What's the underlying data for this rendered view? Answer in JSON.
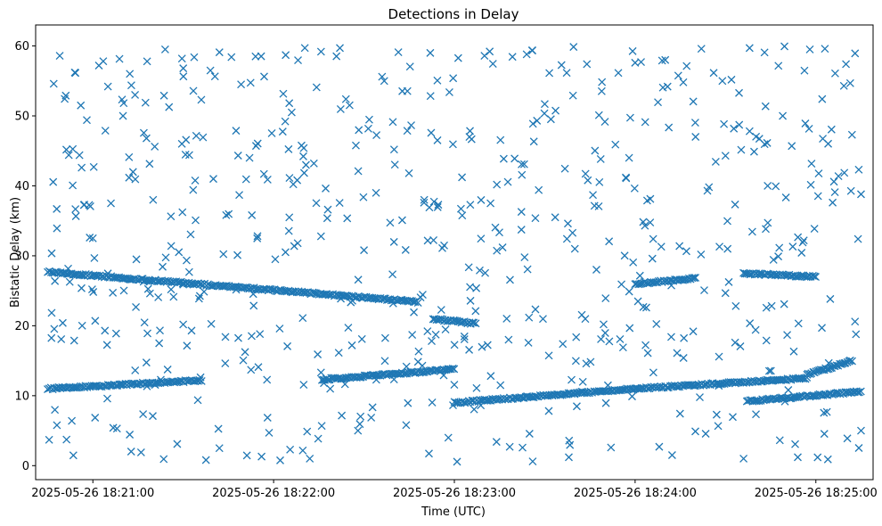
{
  "chart_data": {
    "type": "scatter",
    "title": "Detections in Delay",
    "xlabel": "Time (UTC)",
    "ylabel": "Bistatic Delay (km)",
    "marker": "x",
    "color": "#1f77b4",
    "x_start": "2025-05-26 18:20:45",
    "x_end": "2025-05-26 18:25:15",
    "xlim": [
      "2025-05-26 18:20:41",
      "2025-05-26 18:25:19"
    ],
    "ylim": [
      -2,
      63
    ],
    "grid": false,
    "x_ticks": [
      "2025-05-26 18:21:00",
      "2025-05-26 18:22:00",
      "2025-05-26 18:23:00",
      "2025-05-26 18:24:00",
      "2025-05-26 18:25:00"
    ],
    "y_ticks": [
      "0",
      "10",
      "20",
      "30",
      "40",
      "50",
      "60"
    ],
    "tracks": [
      {
        "from": "2025-05-26 18:20:45",
        "to": "2025-05-26 18:21:36",
        "delay_from": 11.0,
        "delay_to": 12.2
      },
      {
        "from": "2025-05-26 18:22:16",
        "to": "2025-05-26 18:23:00",
        "delay_from": 12.3,
        "delay_to": 13.8
      },
      {
        "from": "2025-05-26 18:23:00",
        "to": "2025-05-26 18:24:00",
        "delay_from": 9.0,
        "delay_to": 11.0
      },
      {
        "from": "2025-05-26 18:24:00",
        "to": "2025-05-26 18:24:57",
        "delay_from": 11.0,
        "delay_to": 12.5
      },
      {
        "from": "2025-05-26 18:24:37",
        "to": "2025-05-26 18:25:15",
        "delay_from": 9.2,
        "delay_to": 10.6
      },
      {
        "from": "2025-05-26 18:24:57",
        "to": "2025-05-26 18:25:12",
        "delay_from": 13.0,
        "delay_to": 15.0
      },
      {
        "from": "2025-05-26 18:20:45",
        "to": "2025-05-26 18:22:14",
        "delay_from": 27.7,
        "delay_to": 24.6
      },
      {
        "from": "2025-05-26 18:22:14",
        "to": "2025-05-26 18:22:48",
        "delay_from": 24.6,
        "delay_to": 23.4
      },
      {
        "from": "2025-05-26 18:22:53",
        "to": "2025-05-26 18:23:07",
        "delay_from": 21.0,
        "delay_to": 20.3
      },
      {
        "from": "2025-05-26 18:24:00",
        "to": "2025-05-26 18:24:20",
        "delay_from": 26.0,
        "delay_to": 26.8
      },
      {
        "from": "2025-05-26 18:24:36",
        "to": "2025-05-26 18:25:00",
        "delay_from": 27.5,
        "delay_to": 27.0
      }
    ],
    "scatter_points": [
      [
        "2025-05-26 18:20:47",
        54.6
      ],
      [
        "2025-05-26 18:20:49",
        58.6
      ],
      [
        "2025-05-26 18:20:54",
        56.2
      ],
      [
        "2025-05-26 18:21:02",
        57.2
      ],
      [
        "2025-05-26 18:21:05",
        54.2
      ],
      [
        "2025-05-26 18:20:51",
        52.9
      ],
      [
        "2025-05-26 18:20:56",
        51.5
      ],
      [
        "2025-05-26 18:20:58",
        49.4
      ],
      [
        "2025-05-26 18:21:10",
        50.0
      ],
      [
        "2025-05-26 18:21:14",
        53.0
      ],
      [
        "2025-05-26 18:21:18",
        57.8
      ],
      [
        "2025-05-26 18:21:24",
        59.5
      ],
      [
        "2025-05-26 18:21:30",
        56.8
      ],
      [
        "2025-05-26 18:21:46",
        58.4
      ],
      [
        "2025-05-26 18:21:54",
        58.5
      ],
      [
        "2025-05-26 18:22:04",
        58.7
      ],
      [
        "2025-05-26 18:22:22",
        59.7
      ],
      [
        "2025-05-26 18:22:52",
        59.0
      ],
      [
        "2025-05-26 18:23:10",
        58.6
      ],
      [
        "2025-05-26 18:23:24",
        58.8
      ],
      [
        "2025-05-26 18:23:44",
        57.4
      ],
      [
        "2025-05-26 18:24:00",
        57.6
      ],
      [
        "2025-05-26 18:24:10",
        58.0
      ],
      [
        "2025-05-26 18:24:22",
        59.6
      ],
      [
        "2025-05-26 18:24:38",
        59.7
      ],
      [
        "2025-05-26 18:24:58",
        59.5
      ],
      [
        "2025-05-26 18:25:03",
        59.6
      ],
      [
        "2025-05-26 18:25:10",
        57.4
      ],
      [
        "2025-05-26 18:21:36",
        52.3
      ],
      [
        "2025-05-26 18:22:06",
        50.5
      ],
      [
        "2025-05-26 18:22:24",
        52.4
      ],
      [
        "2025-05-26 18:22:36",
        55.6
      ],
      [
        "2025-05-26 18:23:05",
        47.0
      ],
      [
        "2025-05-26 18:23:30",
        51.7
      ],
      [
        "2025-05-26 18:23:48",
        50.1
      ],
      [
        "2025-05-26 18:24:16",
        54.8
      ],
      [
        "2025-05-26 18:24:49",
        50.0
      ],
      [
        "2025-05-26 18:25:12",
        47.3
      ],
      [
        "2025-05-26 18:20:48",
        36.7
      ],
      [
        "2025-05-26 18:21:06",
        37.5
      ],
      [
        "2025-05-26 18:21:20",
        38.0
      ],
      [
        "2025-05-26 18:21:40",
        41.0
      ],
      [
        "2025-05-26 18:21:58",
        40.9
      ],
      [
        "2025-05-26 18:22:18",
        36.6
      ],
      [
        "2025-05-26 18:22:34",
        39.0
      ],
      [
        "2025-05-26 18:22:50",
        38.0
      ],
      [
        "2025-05-26 18:23:12",
        37.5
      ],
      [
        "2025-05-26 18:23:28",
        39.4
      ],
      [
        "2025-05-26 18:23:46",
        38.7
      ],
      [
        "2025-05-26 18:24:04",
        37.9
      ],
      [
        "2025-05-26 18:24:24",
        39.3
      ],
      [
        "2025-05-26 18:24:44",
        40.0
      ],
      [
        "2025-05-26 18:25:06",
        40.6
      ],
      [
        "2025-05-26 18:25:15",
        38.8
      ],
      [
        "2025-05-26 18:20:52",
        44.4
      ],
      [
        "2025-05-26 18:21:12",
        44.1
      ],
      [
        "2025-05-26 18:21:32",
        44.4
      ],
      [
        "2025-05-26 18:21:52",
        44.0
      ],
      [
        "2025-05-26 18:22:10",
        45.4
      ],
      [
        "2025-05-26 18:22:40",
        45.2
      ],
      [
        "2025-05-26 18:23:20",
        43.9
      ],
      [
        "2025-05-26 18:23:58",
        44.0
      ],
      [
        "2025-05-26 18:24:30",
        44.3
      ],
      [
        "2025-05-26 18:24:52",
        45.7
      ],
      [
        "2025-05-26 18:21:00",
        32.5
      ],
      [
        "2025-05-26 18:21:26",
        31.4
      ],
      [
        "2025-05-26 18:21:48",
        30.1
      ],
      [
        "2025-05-26 18:22:08",
        31.8
      ],
      [
        "2025-05-26 18:22:30",
        30.8
      ],
      [
        "2025-05-26 18:22:56",
        31.1
      ],
      [
        "2025-05-26 18:23:16",
        31.2
      ],
      [
        "2025-05-26 18:23:40",
        31.0
      ],
      [
        "2025-05-26 18:24:06",
        32.4
      ],
      [
        "2025-05-26 18:24:28",
        31.3
      ],
      [
        "2025-05-26 18:24:56",
        32.2
      ],
      [
        "2025-05-26 18:25:14",
        32.4
      ],
      [
        "2025-05-26 18:20:50",
        20.4
      ],
      [
        "2025-05-26 18:21:04",
        19.3
      ],
      [
        "2025-05-26 18:21:22",
        17.5
      ],
      [
        "2025-05-26 18:21:44",
        18.4
      ],
      [
        "2025-05-26 18:22:02",
        19.6
      ],
      [
        "2025-05-26 18:22:26",
        17.2
      ],
      [
        "2025-05-26 18:22:46",
        18.7
      ],
      [
        "2025-05-26 18:23:18",
        18.0
      ],
      [
        "2025-05-26 18:23:36",
        17.4
      ],
      [
        "2025-05-26 18:23:56",
        16.9
      ],
      [
        "2025-05-26 18:24:12",
        18.4
      ],
      [
        "2025-05-26 18:24:40",
        19.4
      ],
      [
        "2025-05-26 18:25:02",
        19.7
      ],
      [
        "2025-05-26 18:25:13",
        20.6
      ],
      [
        "2025-05-26 18:20:53",
        6.4
      ],
      [
        "2025-05-26 18:21:08",
        5.3
      ],
      [
        "2025-05-26 18:21:16",
        1.9
      ],
      [
        "2025-05-26 18:21:28",
        3.1
      ],
      [
        "2025-05-26 18:21:42",
        2.5
      ],
      [
        "2025-05-26 18:21:56",
        1.3
      ],
      [
        "2025-05-26 18:22:12",
        1.0
      ],
      [
        "2025-05-26 18:22:28",
        5.0
      ],
      [
        "2025-05-26 18:22:44",
        5.8
      ],
      [
        "2025-05-26 18:22:58",
        4.0
      ],
      [
        "2025-05-26 18:23:14",
        3.4
      ],
      [
        "2025-05-26 18:23:26",
        0.6
      ],
      [
        "2025-05-26 18:23:38",
        1.2
      ],
      [
        "2025-05-26 18:23:52",
        2.6
      ],
      [
        "2025-05-26 18:24:08",
        2.7
      ],
      [
        "2025-05-26 18:24:20",
        4.9
      ],
      [
        "2025-05-26 18:24:36",
        1.0
      ],
      [
        "2025-05-26 18:24:54",
        1.2
      ],
      [
        "2025-05-26 18:25:04",
        0.9
      ],
      [
        "2025-05-26 18:25:15",
        5.0
      ]
    ]
  }
}
